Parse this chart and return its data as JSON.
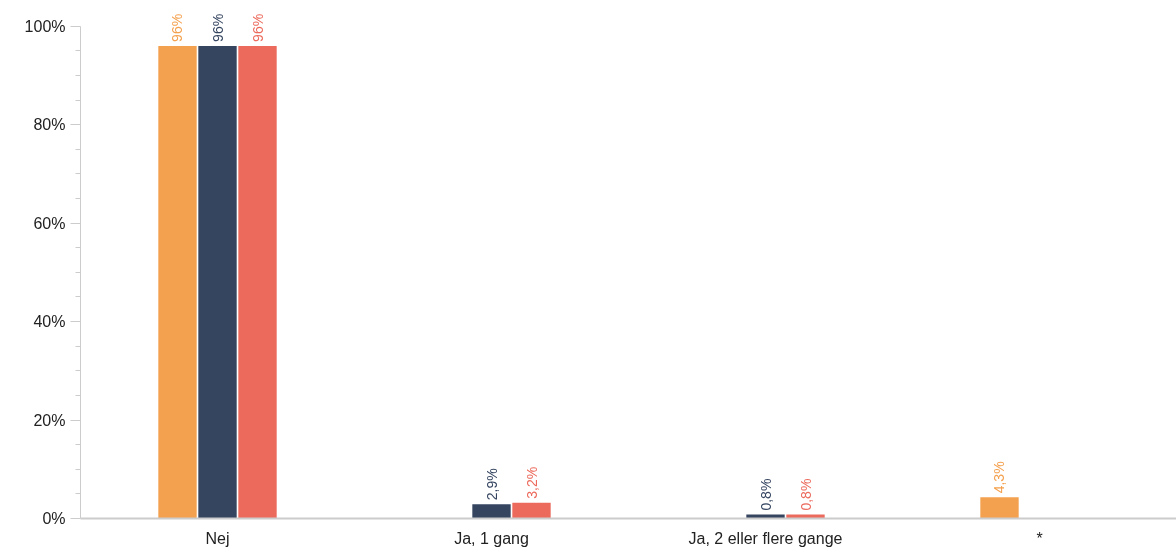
{
  "chart_data": {
    "type": "bar",
    "categories": [
      "Nej",
      "Ja, 1 gang",
      "Ja, 2 eller flere gange",
      "*"
    ],
    "series": [
      {
        "color": "#f4a14f",
        "values": [
          96,
          null,
          null,
          4.3
        ],
        "value_labels": [
          "96%",
          null,
          null,
          "4,3%"
        ]
      },
      {
        "color": "#354560",
        "values": [
          96,
          2.9,
          0.8,
          null
        ],
        "value_labels": [
          "96%",
          "2,9%",
          "0,8%",
          null
        ]
      },
      {
        "color": "#ec6a5c",
        "values": [
          96,
          3.2,
          0.8,
          null
        ],
        "value_labels": [
          "96%",
          "3,2%",
          "0,8%",
          null
        ]
      }
    ],
    "ylim": [
      0,
      100
    ],
    "yticks": [
      {
        "value": 0,
        "label": "0%"
      },
      {
        "value": 5,
        "label": null
      },
      {
        "value": 10,
        "label": null
      },
      {
        "value": 15,
        "label": null
      },
      {
        "value": 20,
        "label": "20%"
      },
      {
        "value": 25,
        "label": null
      },
      {
        "value": 30,
        "label": null
      },
      {
        "value": 35,
        "label": null
      },
      {
        "value": 40,
        "label": "40%"
      },
      {
        "value": 45,
        "label": null
      },
      {
        "value": 50,
        "label": null
      },
      {
        "value": 55,
        "label": null
      },
      {
        "value": 60,
        "label": "60%"
      },
      {
        "value": 65,
        "label": null
      },
      {
        "value": 70,
        "label": null
      },
      {
        "value": 75,
        "label": null
      },
      {
        "value": 80,
        "label": "80%"
      },
      {
        "value": 85,
        "label": null
      },
      {
        "value": 90,
        "label": null
      },
      {
        "value": 95,
        "label": null
      },
      {
        "value": 100,
        "label": "100%"
      }
    ],
    "grid": false,
    "legend": false
  }
}
